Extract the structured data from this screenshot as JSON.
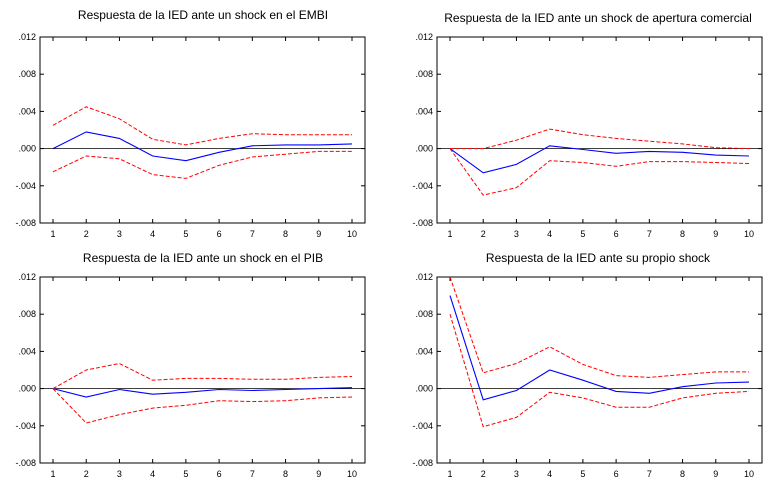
{
  "chart_data": [
    {
      "type": "line",
      "title": "Respuesta de la IED ante un shock en el EMBI",
      "xlabel": "",
      "ylabel": "",
      "x": [
        1,
        2,
        3,
        4,
        5,
        6,
        7,
        8,
        9,
        10
      ],
      "xlim": [
        1,
        10
      ],
      "ylim": [
        -0.008,
        0.012
      ],
      "y_ticks": [
        ".012",
        ".008",
        ".004",
        ".000",
        "-.004",
        "-.008"
      ],
      "y_tick_values": [
        0.012,
        0.008,
        0.004,
        0.0,
        -0.004,
        -0.008
      ],
      "x_ticks": [
        "1",
        "2",
        "3",
        "4",
        "5",
        "6",
        "7",
        "8",
        "9",
        "10"
      ],
      "grid": false,
      "zero_line": true,
      "series": [
        {
          "role": "response",
          "color": "#0000ff",
          "style": "solid",
          "values": [
            0.0,
            0.0018,
            0.0011,
            -0.0008,
            -0.0013,
            -0.0004,
            0.0003,
            0.0004,
            0.0004,
            0.0005
          ]
        },
        {
          "role": "upper",
          "color": "#ff0000",
          "style": "dashed",
          "values": [
            0.0025,
            0.0045,
            0.0032,
            0.001,
            0.0004,
            0.0011,
            0.0016,
            0.0015,
            0.0015,
            0.0015
          ]
        },
        {
          "role": "lower",
          "color": "#ff0000",
          "style": "dashed",
          "values": [
            -0.0025,
            -0.0008,
            -0.0011,
            -0.0028,
            -0.0032,
            -0.0018,
            -0.0009,
            -0.0006,
            -0.0003,
            -0.0003
          ]
        }
      ]
    },
    {
      "type": "line",
      "title": "Respuesta de la IED ante un shock de apertura comercial",
      "xlabel": "",
      "ylabel": "",
      "x": [
        1,
        2,
        3,
        4,
        5,
        6,
        7,
        8,
        9,
        10
      ],
      "xlim": [
        1,
        10
      ],
      "ylim": [
        -0.008,
        0.012
      ],
      "y_ticks": [
        ".012",
        ".008",
        ".004",
        ".000",
        "-.004",
        "-.008"
      ],
      "y_tick_values": [
        0.012,
        0.008,
        0.004,
        0.0,
        -0.004,
        -0.008
      ],
      "x_ticks": [
        "1",
        "2",
        "3",
        "4",
        "5",
        "6",
        "7",
        "8",
        "9",
        "10"
      ],
      "grid": false,
      "zero_line": true,
      "series": [
        {
          "role": "response",
          "color": "#0000ff",
          "style": "solid",
          "values": [
            0.0,
            -0.0026,
            -0.0017,
            0.0003,
            -0.0001,
            -0.0005,
            -0.0003,
            -0.0004,
            -0.0007,
            -0.0008
          ]
        },
        {
          "role": "upper",
          "color": "#ff0000",
          "style": "dashed",
          "values": [
            0.0,
            0.0,
            0.0009,
            0.0021,
            0.0015,
            0.0011,
            0.0008,
            0.0005,
            0.0001,
            0.0
          ]
        },
        {
          "role": "lower",
          "color": "#ff0000",
          "style": "dashed",
          "values": [
            0.0,
            -0.005,
            -0.0042,
            -0.0013,
            -0.0015,
            -0.0019,
            -0.0014,
            -0.0014,
            -0.0015,
            -0.0016
          ]
        }
      ]
    },
    {
      "type": "line",
      "title": "Respuesta de la IED ante un shock en el PIB",
      "xlabel": "",
      "ylabel": "",
      "x": [
        1,
        2,
        3,
        4,
        5,
        6,
        7,
        8,
        9,
        10
      ],
      "xlim": [
        1,
        10
      ],
      "ylim": [
        -0.008,
        0.012
      ],
      "y_ticks": [
        ".012",
        ".008",
        ".004",
        ".000",
        "-.004",
        "-.008"
      ],
      "y_tick_values": [
        0.012,
        0.008,
        0.004,
        0.0,
        -0.004,
        -0.008
      ],
      "x_ticks": [
        "1",
        "2",
        "3",
        "4",
        "5",
        "6",
        "7",
        "8",
        "9",
        "10"
      ],
      "grid": false,
      "zero_line": true,
      "series": [
        {
          "role": "response",
          "color": "#0000ff",
          "style": "solid",
          "values": [
            0.0,
            -0.0009,
            -0.0001,
            -0.0006,
            -0.0004,
            -0.0001,
            -0.0002,
            -0.0001,
            0.0,
            0.0001
          ]
        },
        {
          "role": "upper",
          "color": "#ff0000",
          "style": "dashed",
          "values": [
            0.0,
            0.002,
            0.0027,
            0.0009,
            0.0011,
            0.0011,
            0.001,
            0.001,
            0.0012,
            0.0013
          ]
        },
        {
          "role": "lower",
          "color": "#ff0000",
          "style": "dashed",
          "values": [
            0.0,
            -0.0037,
            -0.0028,
            -0.0021,
            -0.0018,
            -0.0013,
            -0.0014,
            -0.0013,
            -0.001,
            -0.0009
          ]
        }
      ]
    },
    {
      "type": "line",
      "title": "Respuesta de la IED ante su propio shock",
      "xlabel": "",
      "ylabel": "",
      "x": [
        1,
        2,
        3,
        4,
        5,
        6,
        7,
        8,
        9,
        10
      ],
      "xlim": [
        1,
        10
      ],
      "ylim": [
        -0.008,
        0.012
      ],
      "y_ticks": [
        ".012",
        ".008",
        ".004",
        ".000",
        "-.004",
        "-.008"
      ],
      "y_tick_values": [
        0.012,
        0.008,
        0.004,
        0.0,
        -0.004,
        -0.008
      ],
      "x_ticks": [
        "1",
        "2",
        "3",
        "4",
        "5",
        "6",
        "7",
        "8",
        "9",
        "10"
      ],
      "grid": false,
      "zero_line": true,
      "series": [
        {
          "role": "response",
          "color": "#0000ff",
          "style": "solid",
          "values": [
            0.01,
            -0.0012,
            -0.0002,
            0.002,
            0.0009,
            -0.0003,
            -0.0005,
            0.0002,
            0.0006,
            0.0007
          ]
        },
        {
          "role": "upper",
          "color": "#ff0000",
          "style": "dashed",
          "values": [
            0.012,
            0.0017,
            0.0027,
            0.0045,
            0.0026,
            0.0014,
            0.0012,
            0.0015,
            0.0018,
            0.0018
          ]
        },
        {
          "role": "lower",
          "color": "#ff0000",
          "style": "dashed",
          "values": [
            0.008,
            -0.0041,
            -0.0031,
            -0.0004,
            -0.001,
            -0.002,
            -0.002,
            -0.001,
            -0.0005,
            -0.0003
          ]
        }
      ]
    }
  ]
}
